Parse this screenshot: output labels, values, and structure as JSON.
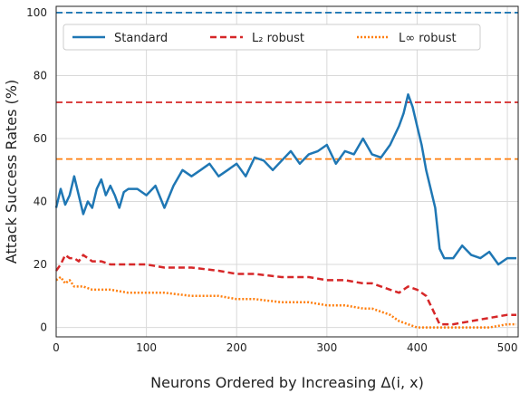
{
  "chart_data": {
    "type": "line",
    "title": "",
    "xlabel": "Neurons Ordered by Increasing Δ(i, x)",
    "ylabel": "Attack Success Rates (%)",
    "xlim": [
      0,
      512
    ],
    "ylim": [
      -3,
      102
    ],
    "xticks": [
      "0",
      "100",
      "200",
      "300",
      "400",
      "500"
    ],
    "yticks": [
      "0",
      "20",
      "40",
      "60",
      "80",
      "100"
    ],
    "grid": true,
    "legend_position": "top",
    "legend": [
      {
        "label": "Standard",
        "style": "solid",
        "color": "#1f77b4"
      },
      {
        "label": "L₂ robust",
        "style": "dashed",
        "color": "#d62728"
      },
      {
        "label": "L∞ robust",
        "style": "dotted",
        "color": "#ff7f0e"
      }
    ],
    "reference_lines": [
      {
        "y": 100,
        "color": "#1f77b4",
        "style": "dashed"
      },
      {
        "y": 71.5,
        "color": "#d62728",
        "style": "dashed"
      },
      {
        "y": 53.5,
        "color": "#ff7f0e",
        "style": "dashed"
      }
    ],
    "series": [
      {
        "name": "Standard",
        "color": "#1f77b4",
        "style": "solid",
        "x": [
          0,
          5,
          10,
          15,
          20,
          25,
          30,
          35,
          40,
          45,
          50,
          55,
          60,
          65,
          70,
          75,
          80,
          90,
          100,
          110,
          120,
          130,
          140,
          150,
          160,
          170,
          180,
          190,
          200,
          210,
          220,
          230,
          240,
          250,
          260,
          270,
          280,
          290,
          300,
          310,
          320,
          330,
          340,
          350,
          360,
          370,
          380,
          385,
          390,
          395,
          400,
          405,
          410,
          415,
          420,
          425,
          430,
          440,
          450,
          460,
          470,
          480,
          490,
          500,
          510
        ],
        "y": [
          38,
          44,
          39,
          42,
          48,
          42,
          36,
          40,
          38,
          44,
          47,
          42,
          45,
          42,
          38,
          43,
          44,
          44,
          42,
          45,
          38,
          45,
          50,
          48,
          50,
          52,
          48,
          50,
          52,
          48,
          54,
          53,
          50,
          53,
          56,
          52,
          55,
          56,
          58,
          52,
          56,
          55,
          60,
          55,
          54,
          58,
          64,
          68,
          74,
          70,
          64,
          58,
          50,
          44,
          38,
          25,
          22,
          22,
          26,
          23,
          22,
          24,
          20,
          22,
          22
        ]
      },
      {
        "name": "L₂ robust",
        "color": "#d62728",
        "style": "dashed",
        "x": [
          0,
          5,
          10,
          15,
          20,
          25,
          30,
          35,
          40,
          50,
          60,
          80,
          100,
          120,
          150,
          180,
          200,
          220,
          250,
          280,
          300,
          320,
          340,
          350,
          360,
          370,
          380,
          390,
          400,
          410,
          415,
          420,
          425,
          430,
          440,
          460,
          480,
          500,
          510
        ],
        "y": [
          18,
          20,
          23,
          22,
          22,
          21,
          23,
          22,
          21,
          21,
          20,
          20,
          20,
          19,
          19,
          18,
          17,
          17,
          16,
          16,
          15,
          15,
          14,
          14,
          13,
          12,
          11,
          13,
          12,
          10,
          7,
          4,
          1,
          1,
          1,
          2,
          3,
          4,
          4
        ]
      },
      {
        "name": "L∞ robust",
        "color": "#ff7f0e",
        "style": "dotted",
        "x": [
          0,
          5,
          10,
          15,
          20,
          30,
          40,
          60,
          80,
          100,
          120,
          150,
          180,
          200,
          220,
          250,
          280,
          300,
          320,
          340,
          350,
          360,
          370,
          380,
          390,
          400,
          410,
          420,
          430,
          440,
          460,
          480,
          500,
          510
        ],
        "y": [
          15,
          16,
          14,
          15,
          13,
          13,
          12,
          12,
          11,
          11,
          11,
          10,
          10,
          9,
          9,
          8,
          8,
          7,
          7,
          6,
          6,
          5,
          4,
          2,
          1,
          0,
          0,
          0,
          0,
          0,
          0,
          0,
          1,
          1
        ]
      }
    ]
  }
}
